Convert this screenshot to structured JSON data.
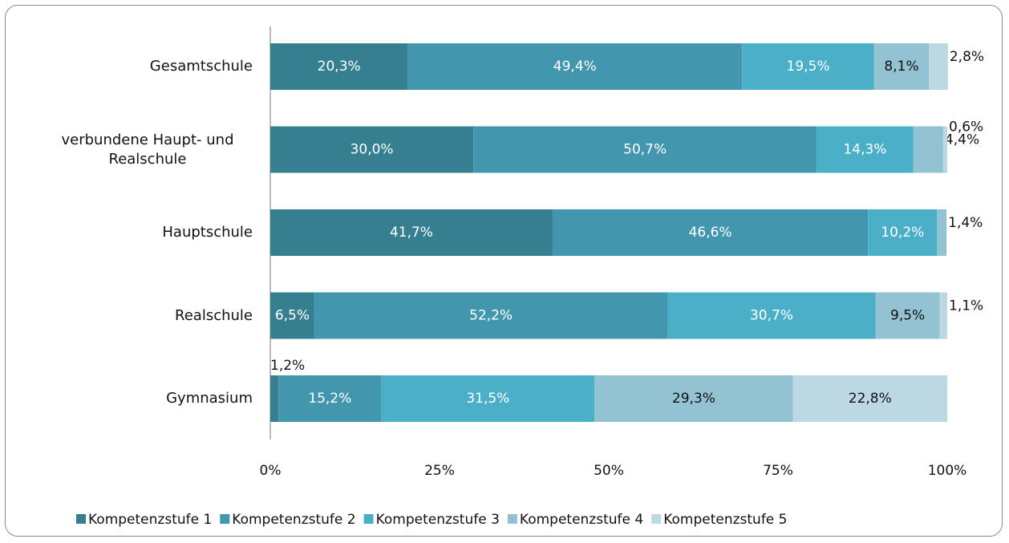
{
  "chart_data": {
    "type": "stacked_bar_horizontal",
    "categories": [
      "Gesamtschule",
      "verbundene Haupt- und Realschule",
      "Hauptschule",
      "Realschule",
      "Gymnasium"
    ],
    "series": [
      {
        "name": "Kompetenzstufe 1",
        "color": "#367f91",
        "values": [
          20.3,
          30.0,
          41.7,
          6.5,
          1.2
        ],
        "value_labels": [
          "20,3%",
          "30,0%",
          "41,7%",
          "6,5%",
          "1,2%"
        ]
      },
      {
        "name": "Kompetenzstufe 2",
        "color": "#4297ae",
        "values": [
          49.4,
          50.7,
          46.6,
          52.2,
          15.2
        ],
        "value_labels": [
          "49,4%",
          "50,7%",
          "46,6%",
          "52,2%",
          "15,2%"
        ]
      },
      {
        "name": "Kompetenzstufe 3",
        "color": "#4bafc8",
        "values": [
          19.5,
          14.3,
          10.2,
          30.7,
          31.5
        ],
        "value_labels": [
          "19,5%",
          "14,3%",
          "10,2%",
          "30,7%",
          "31,5%"
        ]
      },
      {
        "name": "Kompetenzstufe 4",
        "color": "#93c3d3",
        "values": [
          8.1,
          4.4,
          1.4,
          9.5,
          29.3
        ],
        "value_labels": [
          "8,1%",
          "4,4%",
          "1,4%",
          "9,5%",
          "29,3%"
        ]
      },
      {
        "name": "Kompetenzstufe 5",
        "color": "#bcd8e3",
        "values": [
          2.8,
          0.6,
          null,
          1.1,
          22.8
        ],
        "value_labels": [
          "2,8%",
          "0,6%",
          null,
          "1,1%",
          "22,8%"
        ]
      }
    ],
    "xlim": [
      0,
      100
    ],
    "xticks": [
      {
        "value": 0,
        "label": "0%"
      },
      {
        "value": 25,
        "label": "25%"
      },
      {
        "value": 50,
        "label": "50%"
      },
      {
        "value": 75,
        "label": "75%"
      },
      {
        "value": 100,
        "label": "100%"
      }
    ],
    "legend": "bottom"
  }
}
